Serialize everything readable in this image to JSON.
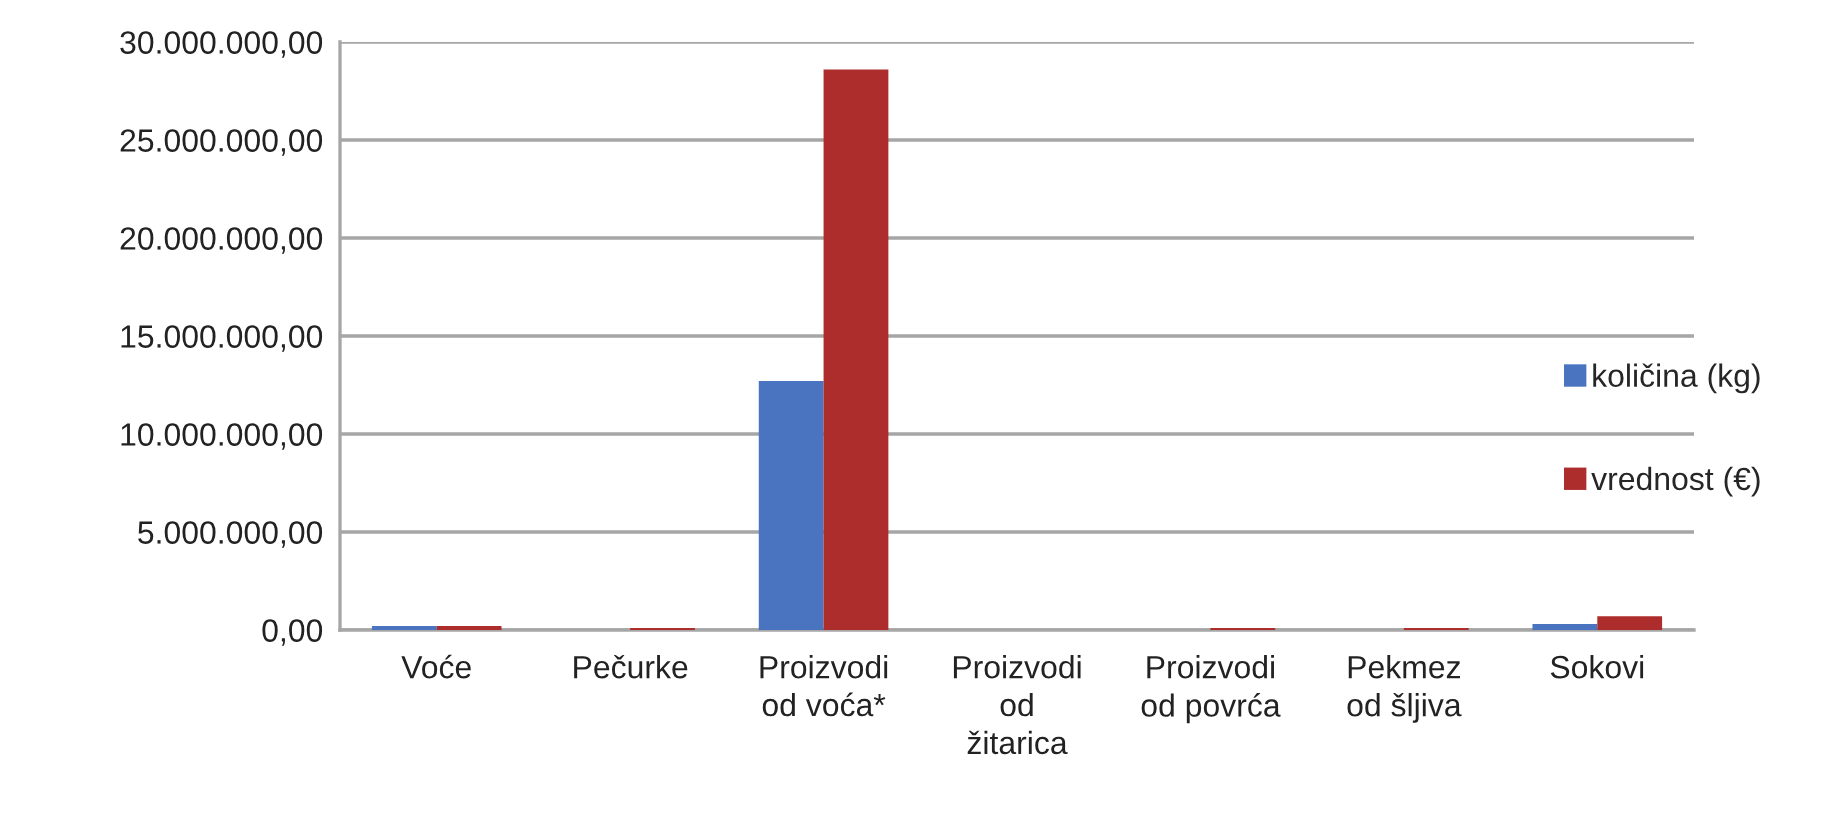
{
  "chart_data": {
    "type": "bar",
    "categories": [
      "Voće",
      "Pečurke",
      "Proizvodi\nod voća*",
      "Proizvodi\nod\nžitarica",
      "Proizvodi\nod povrća",
      "Pekmez\nod šljiva",
      "Sokovi"
    ],
    "series": [
      {
        "name": "količina (kg)",
        "color": "#4a74bf",
        "values": [
          200000,
          0,
          12700000,
          0,
          0,
          0,
          300000
        ]
      },
      {
        "name": "vrednost (€)",
        "color": "#ac2d2b",
        "values": [
          200000,
          100000,
          28600000,
          0,
          100000,
          100000,
          700000
        ]
      }
    ],
    "ylim": [
      0,
      30000000
    ],
    "yticks": [
      {
        "value": 0,
        "label": "0,00"
      },
      {
        "value": 5000000,
        "label": "5.000.000,00"
      },
      {
        "value": 10000000,
        "label": "10.000.000,00"
      },
      {
        "value": 15000000,
        "label": "15.000.000,00"
      },
      {
        "value": 20000000,
        "label": "20.000.000,00"
      },
      {
        "value": 25000000,
        "label": "25.000.000,00"
      },
      {
        "value": 30000000,
        "label": "30.000.000,00"
      }
    ],
    "grid": "y",
    "legend": "right"
  }
}
